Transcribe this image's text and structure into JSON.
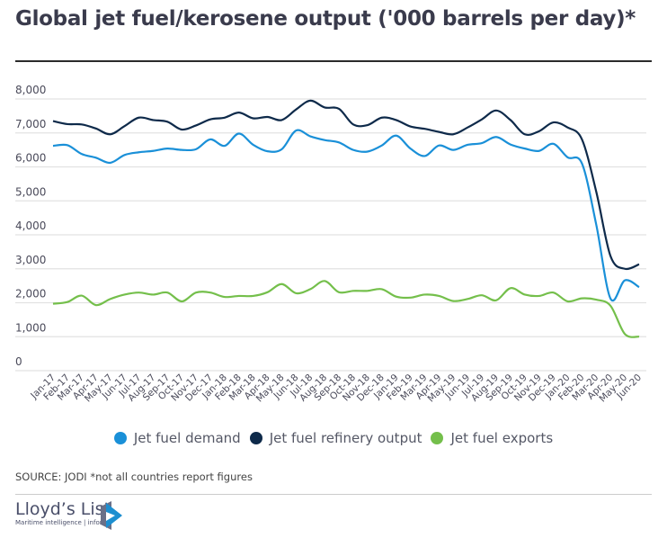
{
  "chart_data": {
    "type": "line",
    "title": "Global jet fuel/kerosene output ('000 barrels per day)*",
    "xlabel": "",
    "ylabel": "",
    "ylim": [
      0,
      8000
    ],
    "yticks": [
      "0",
      "1,000",
      "2,000",
      "3,000",
      "4,000",
      "5,000",
      "6,000",
      "7,000",
      "8,000"
    ],
    "ytick_values": [
      0,
      1000,
      2000,
      3000,
      4000,
      5000,
      6000,
      7000,
      8000
    ],
    "grid": true,
    "legend_position": "bottom",
    "categories": [
      "Jan-17",
      "Feb-17",
      "Mar-17",
      "Apr-17",
      "May-17",
      "Jun-17",
      "Jul-17",
      "Aug-17",
      "Sep-17",
      "Oct-17",
      "Nov-17",
      "Dec-17",
      "Jan-18",
      "Feb-18",
      "Mar-18",
      "Apr-18",
      "May-18",
      "Jun-18",
      "Jul-18",
      "Aug-18",
      "Sep-18",
      "Oct-18",
      "Nov-18",
      "Dec-18",
      "Jan-19",
      "Feb-19",
      "Mar-19",
      "Apr-19",
      "May-19",
      "Jun-19",
      "Jul-19",
      "Aug-19",
      "Sep-19",
      "Oct-19",
      "Nov-19",
      "Dec-19",
      "Jan-20",
      "Feb-20",
      "Mar-20",
      "Apr-20",
      "May-20",
      "Jun-20"
    ],
    "series": [
      {
        "name": "Jet fuel demand",
        "color": "#1a90d8",
        "values": [
          6620,
          6640,
          6380,
          6270,
          6120,
          6350,
          6430,
          6470,
          6540,
          6500,
          6520,
          6810,
          6620,
          6980,
          6650,
          6460,
          6520,
          7070,
          6900,
          6790,
          6720,
          6500,
          6450,
          6630,
          6920,
          6540,
          6320,
          6630,
          6500,
          6650,
          6700,
          6880,
          6660,
          6540,
          6470,
          6680,
          6280,
          6100,
          4300,
          2120,
          2660,
          2460
        ]
      },
      {
        "name": "Jet fuel refinery output",
        "color": "#0e2a4a",
        "values": [
          7350,
          7260,
          7250,
          7130,
          6960,
          7200,
          7450,
          7380,
          7330,
          7100,
          7220,
          7400,
          7450,
          7600,
          7430,
          7470,
          7380,
          7690,
          7950,
          7750,
          7710,
          7250,
          7230,
          7450,
          7380,
          7190,
          7120,
          7030,
          6960,
          7160,
          7400,
          7660,
          7380,
          6960,
          7050,
          7310,
          7160,
          6810,
          5270,
          3370,
          3000,
          3130
        ]
      },
      {
        "name": "Jet fuel exports",
        "color": "#74bf4b",
        "values": [
          1970,
          2020,
          2210,
          1930,
          2110,
          2240,
          2300,
          2240,
          2300,
          2040,
          2300,
          2300,
          2170,
          2200,
          2200,
          2310,
          2550,
          2280,
          2400,
          2640,
          2310,
          2350,
          2350,
          2400,
          2180,
          2150,
          2240,
          2200,
          2050,
          2110,
          2220,
          2070,
          2430,
          2240,
          2200,
          2300,
          2040,
          2130,
          2090,
          1910,
          1080,
          1000
        ]
      }
    ]
  },
  "source": "SOURCE: JODI *not all countries report figures",
  "logo": {
    "name": "Lloyd’s List",
    "tagline": "Maritime intelligence | informa"
  }
}
